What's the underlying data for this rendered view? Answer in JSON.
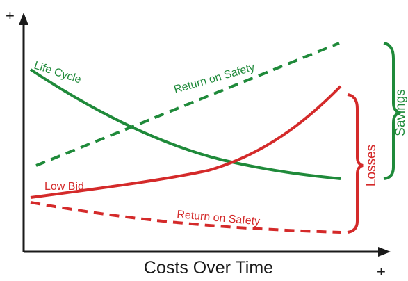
{
  "chart_data": {
    "type": "line",
    "title": "",
    "xlabel": "Costs Over Time",
    "axis_plus_y": "+",
    "axis_plus_x": "+",
    "colors": {
      "green": "#1f8a3a",
      "red": "#d42a2a",
      "axis": "#1a1a1a"
    },
    "series": [
      {
        "name": "Life Cycle",
        "color": "green",
        "style": "solid"
      },
      {
        "name": "Return on Safety",
        "color": "green",
        "style": "dashed"
      },
      {
        "name": "Low Bid",
        "color": "red",
        "style": "solid"
      },
      {
        "name": "Return on Safety",
        "color": "red",
        "style": "dashed"
      }
    ],
    "brackets": [
      {
        "label": "Savings",
        "color": "green"
      },
      {
        "label": "Losses",
        "color": "red"
      }
    ]
  }
}
